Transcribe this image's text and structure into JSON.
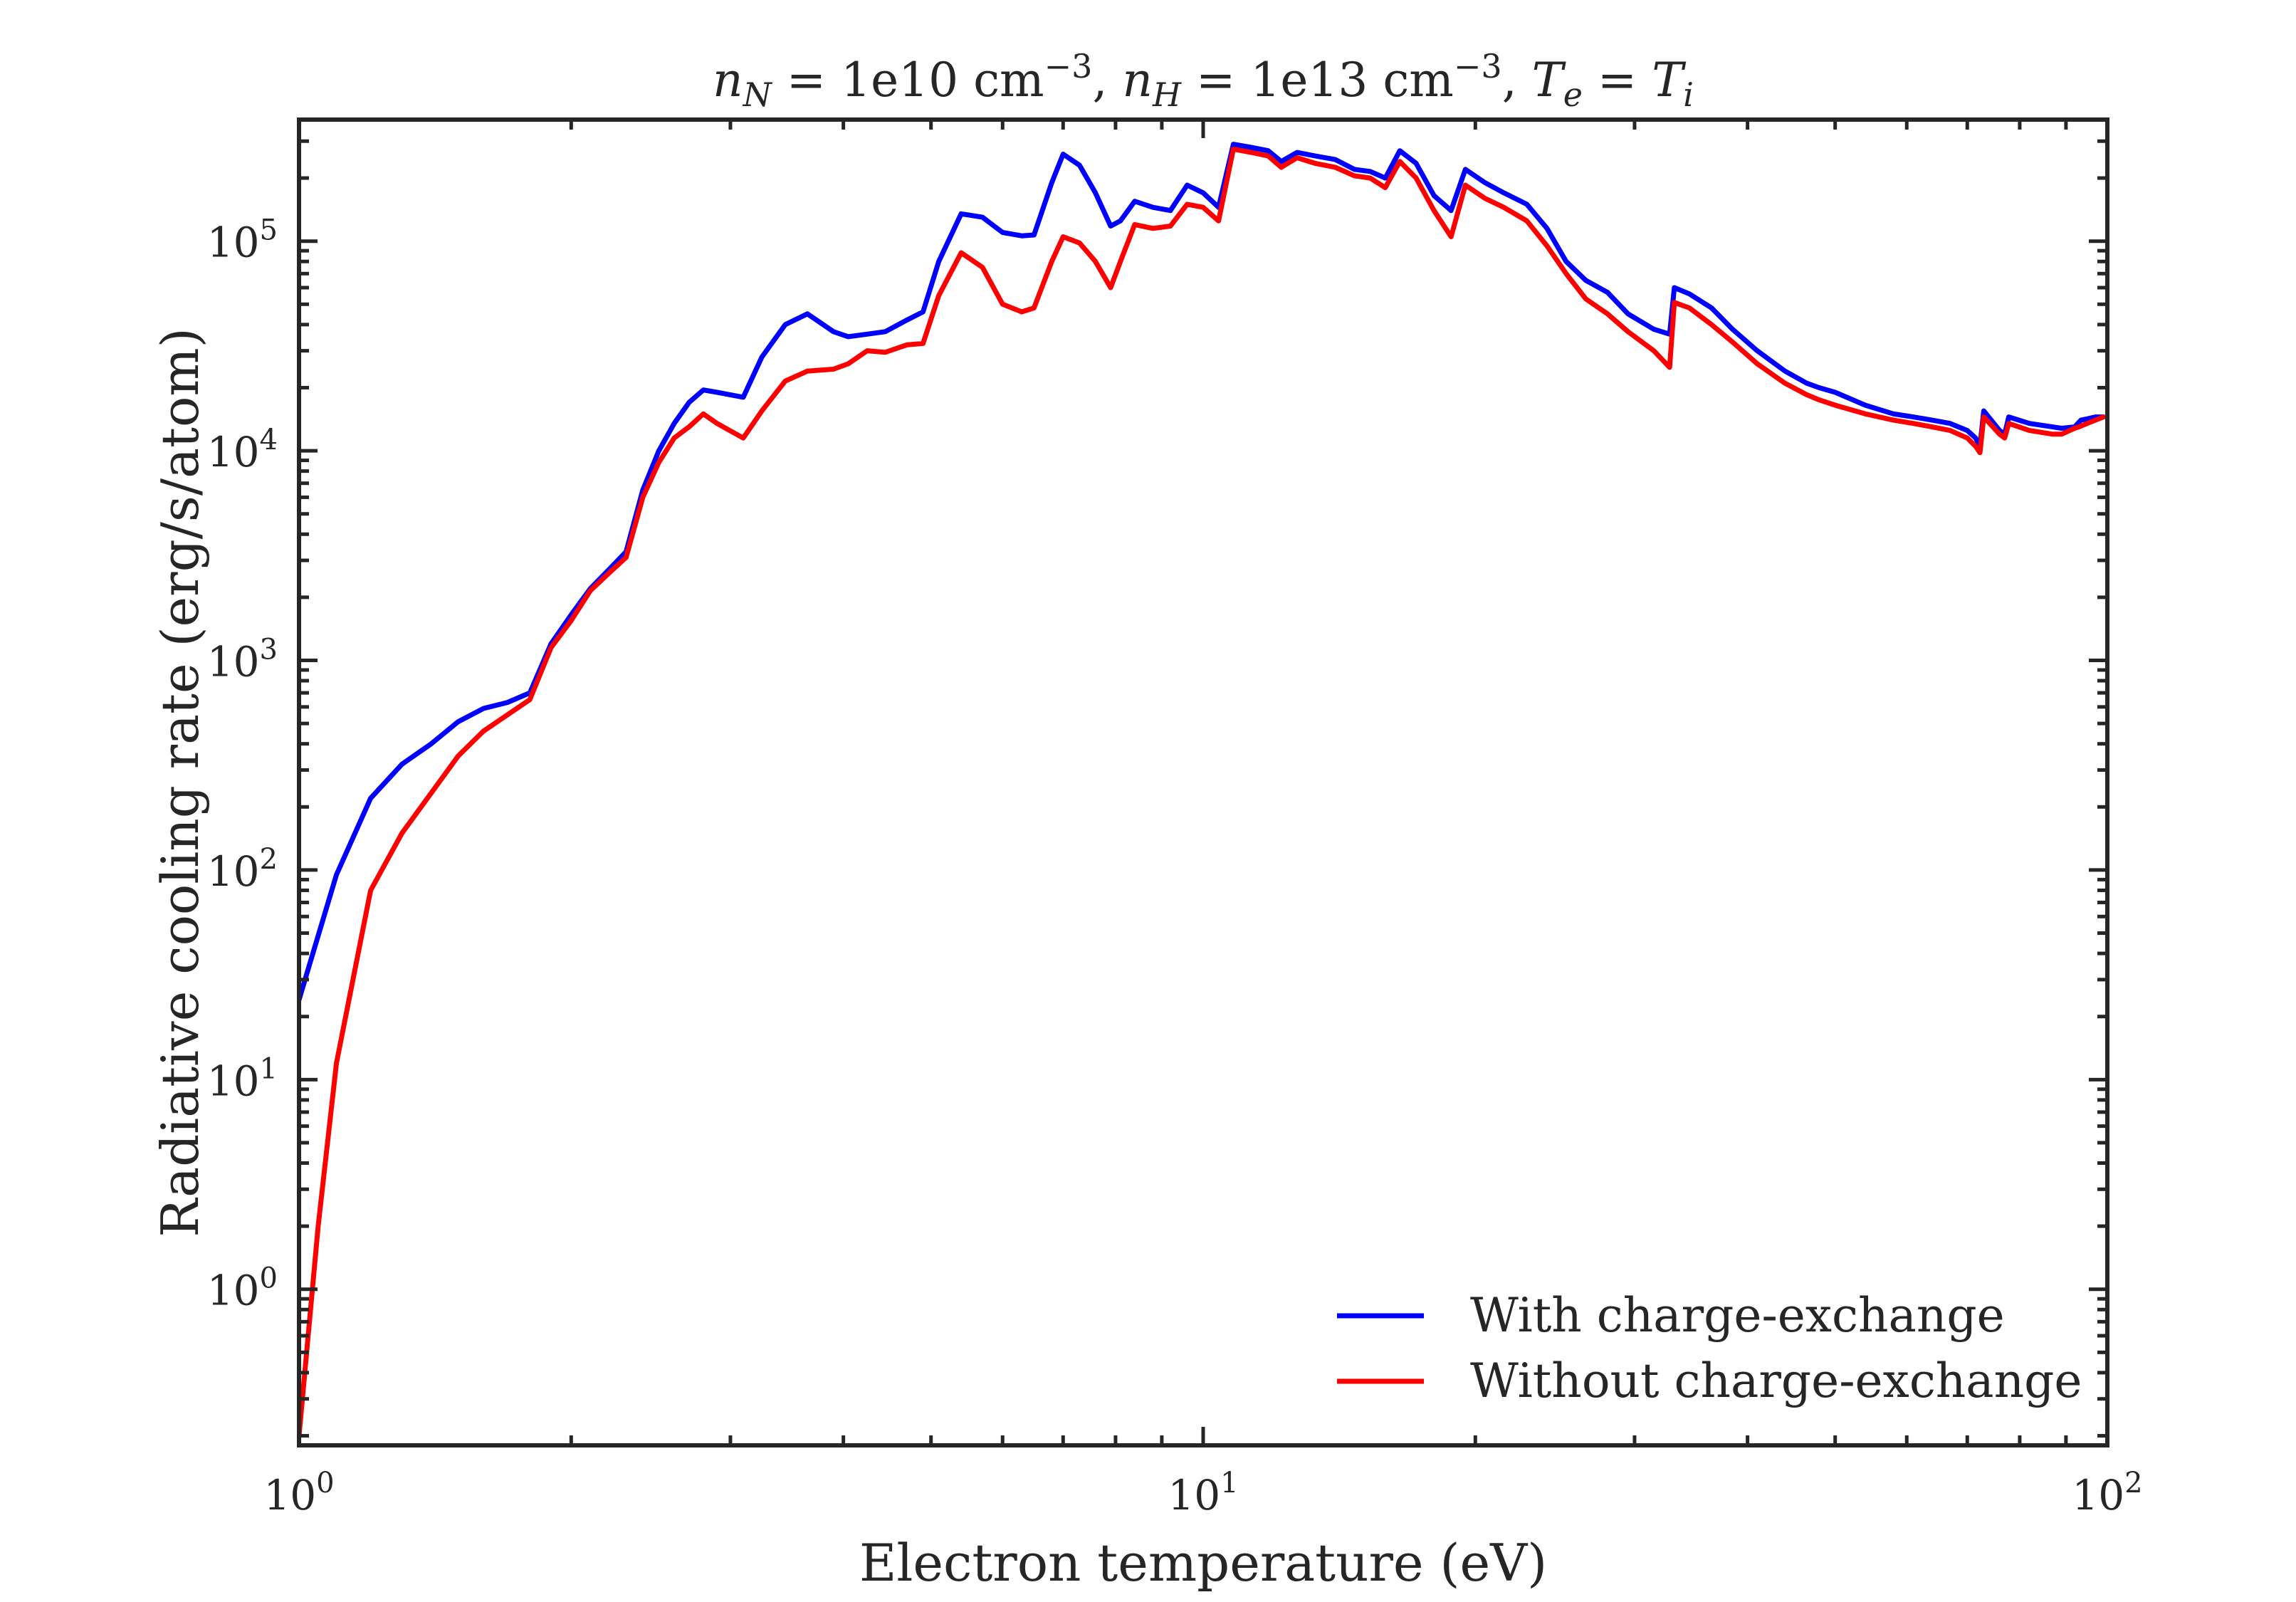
{
  "chart_data": {
    "type": "line",
    "title": "n_N = 1e10 cm^-3,  n_H = 1e13 cm^-3,  T_e = T_i",
    "title_parts": {
      "n_N_value": "1e10 cm",
      "n_H_value": "1e13 cm",
      "exponent": "−3",
      "te": "T",
      "te_sub": "e",
      "ti": "T",
      "ti_sub": "i",
      "n": "n",
      "n_N_sub": "N",
      "n_H_sub": "H"
    },
    "xlabel": "Electron temperature (eV)",
    "ylabel": "Radiative cooling rate (erg/s/atom)",
    "xscale": "log",
    "yscale": "log",
    "xlim": [
      1,
      100
    ],
    "ylim": [
      0.18,
      380000
    ],
    "grid": false,
    "legend_position": "lower-right",
    "x_ticks": [
      {
        "base": "10",
        "exp": "0",
        "value": 1
      },
      {
        "base": "10",
        "exp": "1",
        "value": 10
      },
      {
        "base": "10",
        "exp": "2",
        "value": 100
      }
    ],
    "y_ticks": [
      {
        "base": "10",
        "exp": "0",
        "value": 1
      },
      {
        "base": "10",
        "exp": "1",
        "value": 10
      },
      {
        "base": "10",
        "exp": "2",
        "value": 100
      },
      {
        "base": "10",
        "exp": "3",
        "value": 1000
      },
      {
        "base": "10",
        "exp": "4",
        "value": 10000
      },
      {
        "base": "10",
        "exp": "5",
        "value": 100000
      }
    ],
    "series": [
      {
        "name": "With charge-exchange",
        "color": "#0000ff",
        "points": [
          [
            1.0,
            24
          ],
          [
            1.02,
            32
          ],
          [
            1.1,
            95
          ],
          [
            1.2,
            220
          ],
          [
            1.3,
            320
          ],
          [
            1.4,
            400
          ],
          [
            1.5,
            510
          ],
          [
            1.6,
            590
          ],
          [
            1.7,
            630
          ],
          [
            1.8,
            700
          ],
          [
            1.9,
            1200
          ],
          [
            2.0,
            1650
          ],
          [
            2.1,
            2200
          ],
          [
            2.2,
            2700
          ],
          [
            2.3,
            3300
          ],
          [
            2.4,
            6500
          ],
          [
            2.5,
            10000
          ],
          [
            2.6,
            13500
          ],
          [
            2.7,
            17000
          ],
          [
            2.8,
            19500
          ],
          [
            2.9,
            19000
          ],
          [
            3.1,
            18000
          ],
          [
            3.25,
            28000
          ],
          [
            3.45,
            40000
          ],
          [
            3.65,
            45000
          ],
          [
            3.9,
            37000
          ],
          [
            4.05,
            35000
          ],
          [
            4.25,
            36000
          ],
          [
            4.45,
            37000
          ],
          [
            4.7,
            42000
          ],
          [
            4.9,
            46000
          ],
          [
            5.1,
            80000
          ],
          [
            5.4,
            135000
          ],
          [
            5.7,
            130000
          ],
          [
            6.0,
            110000
          ],
          [
            6.3,
            106000
          ],
          [
            6.5,
            107000
          ],
          [
            6.8,
            190000
          ],
          [
            7.0,
            260000
          ],
          [
            7.3,
            230000
          ],
          [
            7.6,
            170000
          ],
          [
            7.9,
            118000
          ],
          [
            8.1,
            125000
          ],
          [
            8.4,
            155000
          ],
          [
            8.8,
            145000
          ],
          [
            9.2,
            140000
          ],
          [
            9.6,
            185000
          ],
          [
            10.0,
            170000
          ],
          [
            10.4,
            145000
          ],
          [
            10.8,
            290000
          ],
          [
            11.3,
            280000
          ],
          [
            11.8,
            270000
          ],
          [
            12.2,
            240000
          ],
          [
            12.7,
            265000
          ],
          [
            13.3,
            255000
          ],
          [
            14.0,
            245000
          ],
          [
            14.7,
            220000
          ],
          [
            15.3,
            215000
          ],
          [
            15.9,
            200000
          ],
          [
            16.5,
            270000
          ],
          [
            17.2,
            235000
          ],
          [
            18.0,
            165000
          ],
          [
            18.8,
            140000
          ],
          [
            19.5,
            220000
          ],
          [
            20.5,
            190000
          ],
          [
            21.5,
            170000
          ],
          [
            22.8,
            150000
          ],
          [
            24.0,
            115000
          ],
          [
            25.2,
            80000
          ],
          [
            26.5,
            65000
          ],
          [
            28.0,
            57000
          ],
          [
            29.5,
            45000
          ],
          [
            31.5,
            38000
          ],
          [
            32.8,
            36000
          ],
          [
            33.2,
            60000
          ],
          [
            34.5,
            56000
          ],
          [
            36.5,
            48000
          ],
          [
            38.5,
            38000
          ],
          [
            41.0,
            30000
          ],
          [
            44.0,
            24000
          ],
          [
            46.5,
            21000
          ],
          [
            48.0,
            20000
          ],
          [
            50.0,
            19000
          ],
          [
            54.0,
            16500
          ],
          [
            58.0,
            15000
          ],
          [
            61.0,
            14500
          ],
          [
            64.0,
            14000
          ],
          [
            67.0,
            13500
          ],
          [
            70.0,
            12500
          ],
          [
            71.5,
            11500
          ],
          [
            72.3,
            10500
          ],
          [
            73.0,
            15500
          ],
          [
            76.0,
            12500
          ],
          [
            77.0,
            12000
          ],
          [
            77.8,
            14500
          ],
          [
            82.0,
            13500
          ],
          [
            87.0,
            13000
          ],
          [
            89.0,
            12800
          ],
          [
            92.0,
            13000
          ],
          [
            93.5,
            14000
          ],
          [
            95.0,
            14200
          ],
          [
            97.0,
            14500
          ],
          [
            99.0,
            14500
          ]
        ]
      },
      {
        "name": "Without charge-exchange",
        "color": "#ff0000",
        "points": [
          [
            1.0,
            0.2
          ],
          [
            1.05,
            2
          ],
          [
            1.1,
            12
          ],
          [
            1.2,
            80
          ],
          [
            1.3,
            150
          ],
          [
            1.5,
            350
          ],
          [
            1.6,
            460
          ],
          [
            1.7,
            550
          ],
          [
            1.8,
            650
          ],
          [
            1.9,
            1150
          ],
          [
            2.0,
            1550
          ],
          [
            2.1,
            2150
          ],
          [
            2.2,
            2600
          ],
          [
            2.3,
            3100
          ],
          [
            2.4,
            6000
          ],
          [
            2.5,
            8800
          ],
          [
            2.6,
            11500
          ],
          [
            2.7,
            13000
          ],
          [
            2.8,
            15000
          ],
          [
            2.9,
            13500
          ],
          [
            3.1,
            11500
          ],
          [
            3.25,
            15500
          ],
          [
            3.45,
            21500
          ],
          [
            3.65,
            24000
          ],
          [
            3.9,
            24500
          ],
          [
            4.05,
            26000
          ],
          [
            4.25,
            30000
          ],
          [
            4.45,
            29500
          ],
          [
            4.7,
            32000
          ],
          [
            4.9,
            32500
          ],
          [
            5.1,
            55000
          ],
          [
            5.4,
            88000
          ],
          [
            5.7,
            75000
          ],
          [
            6.0,
            50000
          ],
          [
            6.3,
            46000
          ],
          [
            6.5,
            48000
          ],
          [
            6.8,
            80000
          ],
          [
            7.0,
            105000
          ],
          [
            7.3,
            98000
          ],
          [
            7.6,
            80000
          ],
          [
            7.9,
            60000
          ],
          [
            8.1,
            80000
          ],
          [
            8.4,
            120000
          ],
          [
            8.8,
            115000
          ],
          [
            9.2,
            118000
          ],
          [
            9.6,
            150000
          ],
          [
            10.0,
            145000
          ],
          [
            10.4,
            125000
          ],
          [
            10.8,
            275000
          ],
          [
            11.3,
            265000
          ],
          [
            11.8,
            255000
          ],
          [
            12.2,
            225000
          ],
          [
            12.7,
            250000
          ],
          [
            13.3,
            235000
          ],
          [
            14.0,
            225000
          ],
          [
            14.7,
            205000
          ],
          [
            15.3,
            200000
          ],
          [
            15.9,
            180000
          ],
          [
            16.5,
            240000
          ],
          [
            17.2,
            200000
          ],
          [
            18.0,
            140000
          ],
          [
            18.8,
            105000
          ],
          [
            19.5,
            185000
          ],
          [
            20.5,
            160000
          ],
          [
            21.5,
            145000
          ],
          [
            22.8,
            125000
          ],
          [
            24.0,
            95000
          ],
          [
            25.2,
            70000
          ],
          [
            26.5,
            53000
          ],
          [
            28.0,
            45000
          ],
          [
            29.5,
            37000
          ],
          [
            31.5,
            30000
          ],
          [
            32.8,
            25000
          ],
          [
            33.2,
            51000
          ],
          [
            34.5,
            48000
          ],
          [
            36.5,
            40000
          ],
          [
            38.5,
            33000
          ],
          [
            41.0,
            26000
          ],
          [
            44.0,
            21000
          ],
          [
            46.5,
            18500
          ],
          [
            48.0,
            17500
          ],
          [
            50.0,
            16500
          ],
          [
            54.0,
            15000
          ],
          [
            58.0,
            14000
          ],
          [
            61.0,
            13500
          ],
          [
            64.0,
            13000
          ],
          [
            67.0,
            12500
          ],
          [
            70.0,
            11500
          ],
          [
            71.5,
            10500
          ],
          [
            72.3,
            9800
          ],
          [
            73.0,
            14500
          ],
          [
            76.0,
            12000
          ],
          [
            77.0,
            11500
          ],
          [
            77.8,
            13500
          ],
          [
            82.0,
            12500
          ],
          [
            87.0,
            12000
          ],
          [
            89.0,
            12000
          ],
          [
            92.0,
            12800
          ],
          [
            93.0,
            13000
          ],
          [
            95.0,
            13500
          ],
          [
            97.0,
            14000
          ],
          [
            99.0,
            14500
          ]
        ]
      }
    ]
  }
}
